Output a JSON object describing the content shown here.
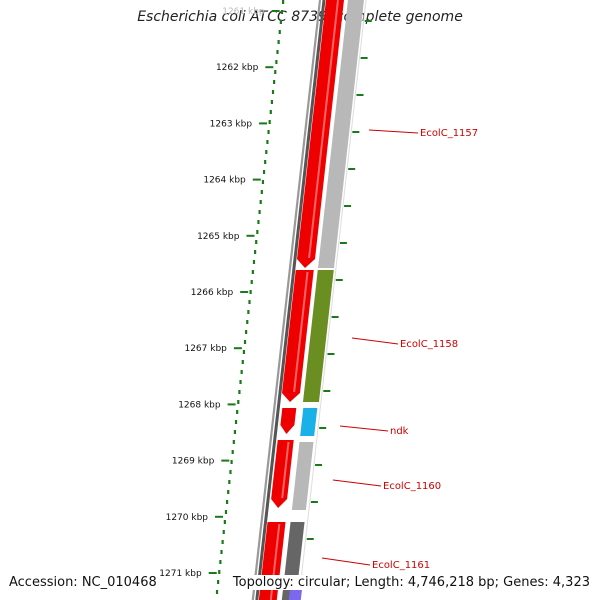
{
  "title": "Escherichia coli ATCC 8739, complete genome",
  "ticks": [
    {
      "label": "1261 kbp",
      "faded": true
    },
    {
      "label": "1262 kbp"
    },
    {
      "label": "1263 kbp"
    },
    {
      "label": "1264 kbp"
    },
    {
      "label": "1265 kbp"
    },
    {
      "label": "1266 kbp"
    },
    {
      "label": "1267 kbp"
    },
    {
      "label": "1268 kbp"
    },
    {
      "label": "1269 kbp"
    },
    {
      "label": "1270 kbp"
    },
    {
      "label": "1271 kbp"
    }
  ],
  "gene_labels": [
    "EcolC_1157",
    "EcolC_1158",
    "ndk",
    "EcolC_1160",
    "EcolC_1161"
  ],
  "colors": {
    "axis_dots": "#1a7a1a",
    "cds": "#ee0000",
    "gene_label": "#cc0000",
    "feature_grey": "#b8b8b8",
    "feature_green": "#6b8e23",
    "feature_cyan": "#1ab0e8",
    "feature_dark": "#666666",
    "feature_blue": "#7b68ee"
  },
  "footer": {
    "accession": "Accession: NC_010468",
    "topology": "Topology: circular; Length: 4,746,218 bp; Genes: 4,323"
  }
}
